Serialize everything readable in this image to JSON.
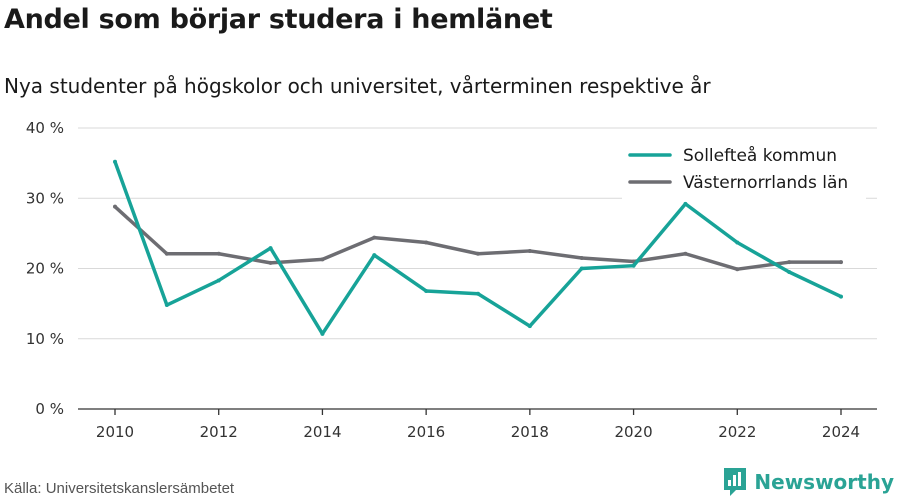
{
  "title": "Andel som börjar studera i hemlänet",
  "subtitle": "Nya studenter på högskolor och universitet, vårterminen respektive år",
  "source": "Källa: Universitetskanslersämbetet",
  "brand": "Newsworthy",
  "chart_data": {
    "type": "line",
    "x": [
      2010,
      2011,
      2012,
      2013,
      2014,
      2015,
      2016,
      2017,
      2018,
      2019,
      2020,
      2021,
      2022,
      2023,
      2024
    ],
    "series": [
      {
        "name": "Sollefteå kommun",
        "color": "#17a398",
        "values": [
          35.2,
          14.8,
          18.3,
          22.9,
          10.7,
          21.9,
          16.8,
          16.4,
          11.8,
          20.0,
          20.4,
          29.2,
          23.7,
          19.5,
          16.0
        ]
      },
      {
        "name": "Västernorrlands län",
        "color": "#6d6d72",
        "values": [
          28.8,
          22.1,
          22.1,
          20.8,
          21.3,
          24.4,
          23.7,
          22.1,
          22.5,
          21.5,
          21.0,
          22.1,
          19.9,
          20.9,
          20.9
        ]
      }
    ],
    "ylim": [
      0,
      40
    ],
    "yticks": [
      0,
      10,
      20,
      30,
      40
    ],
    "ytick_labels": [
      "0 %",
      "10 %",
      "20 %",
      "30 %",
      "40 %"
    ],
    "xticks": [
      2010,
      2012,
      2014,
      2016,
      2018,
      2020,
      2022,
      2024
    ],
    "grid": true,
    "legend_position": "top-right"
  }
}
